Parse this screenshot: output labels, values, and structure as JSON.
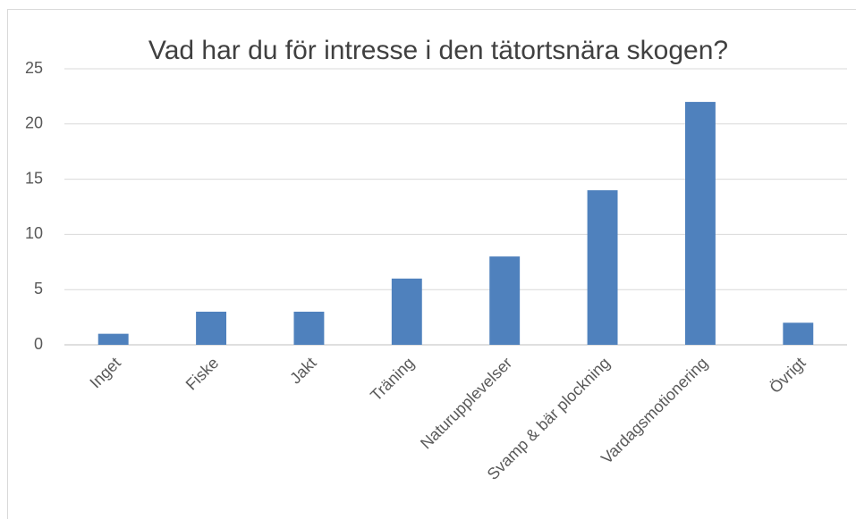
{
  "chart_data": {
    "type": "bar",
    "title": "Vad har du för intresse i den tätortsnära skogen?",
    "categories": [
      "Inget",
      "Fiske",
      "Jakt",
      "Träning",
      "Naturupplevelser",
      "Svamp & bär plockning",
      "Vardagsmotionering",
      "Övrigt"
    ],
    "values": [
      1,
      3,
      3,
      6,
      8,
      14,
      22,
      2
    ],
    "color": "#4f81bd",
    "ylim": [
      0,
      25
    ],
    "yticks": [
      0,
      5,
      10,
      15,
      20,
      25
    ],
    "grid": true
  }
}
